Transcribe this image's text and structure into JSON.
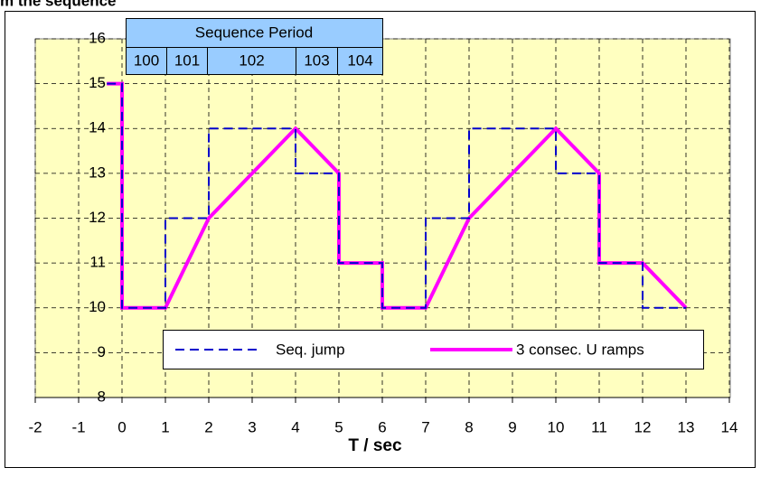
{
  "chart_data": {
    "type": "line",
    "title": "m the sequence",
    "x_label": "T / sec",
    "xlim": [
      -2,
      14
    ],
    "ylim": [
      8,
      16
    ],
    "xticks": [
      -2,
      -1,
      0,
      1,
      2,
      3,
      4,
      5,
      6,
      7,
      8,
      9,
      10,
      11,
      12,
      13,
      14
    ],
    "yticks": [
      8,
      9,
      10,
      11,
      12,
      13,
      14,
      15,
      16
    ],
    "grid": true,
    "series": [
      {
        "name": "Seq. jump",
        "color": "#0000cc",
        "dashed": true,
        "x": [
          -0.35,
          0,
          0,
          1,
          1,
          2,
          2,
          4,
          4,
          5,
          5,
          6,
          6,
          7,
          7,
          8,
          8,
          10,
          10,
          11,
          11,
          12,
          12,
          13
        ],
        "values": [
          15,
          15,
          10,
          10,
          12,
          12,
          14,
          14,
          13,
          13,
          11,
          11,
          10,
          10,
          12,
          12,
          14,
          14,
          13,
          13,
          11,
          11,
          10,
          10
        ]
      },
      {
        "name": "3 consec. U ramps",
        "color": "#ff00ff",
        "dashed": false,
        "x": [
          -0.35,
          0,
          0,
          1,
          2,
          4,
          5,
          5,
          6,
          6,
          7,
          8,
          10,
          11,
          11,
          12,
          13
        ],
        "values": [
          15,
          15,
          10,
          10,
          12,
          14,
          13,
          11,
          11,
          10,
          10,
          12,
          14,
          13,
          11,
          11,
          10
        ]
      }
    ],
    "annotation": {
      "header": "Sequence Period",
      "cells": [
        "100",
        "101",
        "102",
        "103",
        "104"
      ]
    }
  }
}
